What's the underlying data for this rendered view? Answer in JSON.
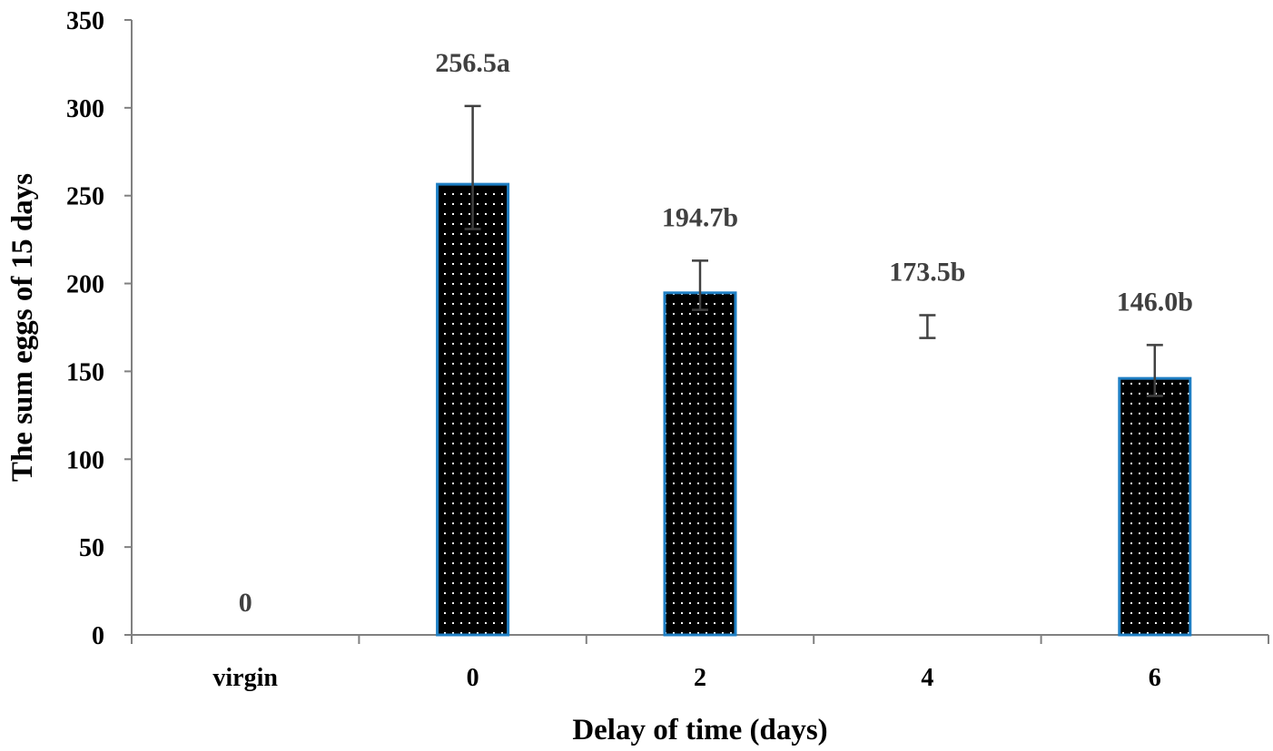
{
  "chart_data": {
    "type": "bar",
    "categories": [
      "virgin",
      "0",
      "2",
      "4",
      "6"
    ],
    "values": [
      0,
      256.5,
      194.7,
      173.5,
      146.0
    ],
    "error_upper": [
      0,
      301,
      213,
      182,
      165
    ],
    "error_lower": [
      0,
      231,
      185,
      169,
      136
    ],
    "data_labels": [
      "0",
      "256.5a",
      "194.7b",
      "173.5b",
      "146.0b"
    ],
    "bar_visible": [
      false,
      true,
      true,
      false,
      true
    ],
    "xlabel": "Delay of time (days)",
    "ylabel": "The sum eggs of 15 days",
    "ylim": [
      0,
      350
    ],
    "yticks": [
      "0",
      "50",
      "100",
      "150",
      "200",
      "250",
      "300",
      "350"
    ],
    "grid": false,
    "legend": "none",
    "colors": {
      "bar_fill": "#000000",
      "bar_dots": "#ffffff",
      "bar_border": "#1f7fc4",
      "error_bar": "#404040",
      "axis": "#808080",
      "label": "#404040"
    }
  }
}
